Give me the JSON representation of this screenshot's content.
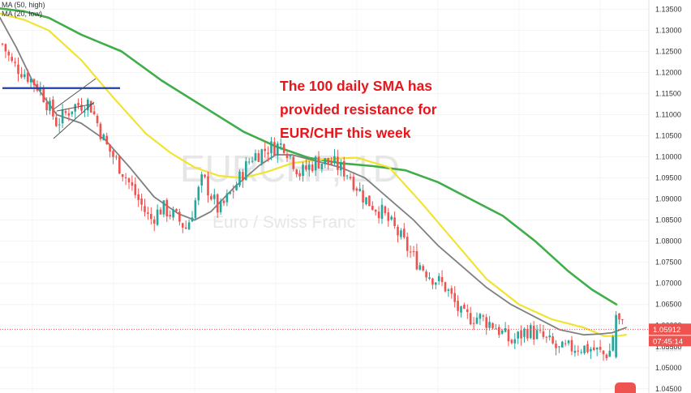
{
  "chart_data": {
    "type": "candlestick",
    "symbol_watermark": "EURCHF, 1D",
    "symbol_description": "Euro / Swiss Franc",
    "legend": [
      {
        "label": "MA (50, high)",
        "color": "#f2e333"
      },
      {
        "label": "MA (20, low)",
        "color": "#808080"
      }
    ],
    "annotation": [
      "The 100 daily SMA has",
      "provided resistance for",
      "EUR/CHF this week"
    ],
    "y_axis": {
      "ticks": [
        "1.13500",
        "1.13000",
        "1.12500",
        "1.12000",
        "1.11500",
        "1.11000",
        "1.10500",
        "1.10000",
        "1.09500",
        "1.09000",
        "1.08500",
        "1.08000",
        "1.07500",
        "1.07000",
        "1.06500",
        "1.06000",
        "1.05500",
        "1.05000",
        "1.04500"
      ],
      "ylim": [
        1.044,
        1.1372
      ]
    },
    "last_price": "1.05912",
    "countdown": "07:45:14",
    "partial_label": "1.05500",
    "support_line": 1.1163,
    "colors": {
      "up": "#26a69a",
      "down": "#ef5350",
      "ma100": "#3fae49",
      "ma50": "#f2e333",
      "ma20": "#808080",
      "support": "#1f3ea8",
      "tag": "#ef5350"
    },
    "ma100": [
      [
        0,
        1.1352
      ],
      [
        30,
        1.1345
      ],
      [
        60,
        1.133
      ],
      [
        100,
        1.129
      ],
      [
        150,
        1.125
      ],
      [
        200,
        1.118
      ],
      [
        250,
        1.112
      ],
      [
        300,
        1.106
      ],
      [
        340,
        1.1025
      ],
      [
        380,
        1.0998
      ],
      [
        420,
        1.0985
      ],
      [
        460,
        1.0978
      ],
      [
        500,
        1.0968
      ],
      [
        540,
        1.094
      ],
      [
        580,
        1.09
      ],
      [
        620,
        1.086
      ],
      [
        660,
        1.08
      ],
      [
        700,
        1.073
      ],
      [
        730,
        1.0685
      ],
      [
        760,
        1.065
      ]
    ],
    "ma50": [
      [
        0,
        1.134
      ],
      [
        30,
        1.1325
      ],
      [
        60,
        1.13
      ],
      [
        100,
        1.123
      ],
      [
        140,
        1.114
      ],
      [
        180,
        1.1055
      ],
      [
        210,
        1.101
      ],
      [
        240,
        1.0975
      ],
      [
        270,
        1.0955
      ],
      [
        300,
        1.095
      ],
      [
        330,
        1.0965
      ],
      [
        360,
        1.0985
      ],
      [
        400,
        1.0995
      ],
      [
        440,
        1.0998
      ],
      [
        480,
        1.0975
      ],
      [
        520,
        1.089
      ],
      [
        560,
        1.08
      ],
      [
        600,
        1.071
      ],
      [
        640,
        1.065
      ],
      [
        680,
        1.0615
      ],
      [
        720,
        1.0595
      ],
      [
        745,
        1.0575
      ],
      [
        760,
        1.0575
      ],
      [
        772,
        1.0578
      ]
    ],
    "ma20": [
      [
        0,
        1.133
      ],
      [
        20,
        1.126
      ],
      [
        40,
        1.118
      ],
      [
        70,
        1.11
      ],
      [
        100,
        1.108
      ],
      [
        130,
        1.104
      ],
      [
        160,
        1.0975
      ],
      [
        190,
        1.0905
      ],
      [
        220,
        1.0865
      ],
      [
        240,
        1.085
      ],
      [
        260,
        1.087
      ],
      [
        290,
        1.093
      ],
      [
        320,
        1.098
      ],
      [
        340,
        1.1005
      ],
      [
        360,
        1.1005
      ],
      [
        380,
        1.0995
      ],
      [
        400,
        1.0985
      ],
      [
        420,
        1.0975
      ],
      [
        450,
        1.095
      ],
      [
        480,
        1.09
      ],
      [
        510,
        1.085
      ],
      [
        540,
        1.079
      ],
      [
        570,
        1.074
      ],
      [
        600,
        1.069
      ],
      [
        630,
        1.065
      ],
      [
        660,
        1.062
      ],
      [
        690,
        1.059
      ],
      [
        720,
        1.0578
      ],
      [
        740,
        1.058
      ],
      [
        755,
        1.0583
      ],
      [
        772,
        1.0595
      ]
    ],
    "candles_anchor": [
      [
        0,
        1.128
      ],
      [
        15,
        1.122
      ],
      [
        30,
        1.12
      ],
      [
        50,
        1.116
      ],
      [
        70,
        1.108
      ],
      [
        90,
        1.112
      ],
      [
        110,
        1.113
      ],
      [
        130,
        1.103
      ],
      [
        150,
        1.097
      ],
      [
        170,
        1.09
      ],
      [
        185,
        1.085
      ],
      [
        200,
        1.088
      ],
      [
        215,
        1.086
      ],
      [
        230,
        1.083
      ],
      [
        250,
        1.095
      ],
      [
        270,
        1.087
      ],
      [
        290,
        1.093
      ],
      [
        310,
        1.1
      ],
      [
        330,
        1.102
      ],
      [
        350,
        1.103
      ],
      [
        370,
        1.096
      ],
      [
        390,
        1.099
      ],
      [
        410,
        1.0985
      ],
      [
        430,
        1.096
      ],
      [
        450,
        1.09
      ],
      [
        470,
        1.087
      ],
      [
        490,
        1.082
      ],
      [
        510,
        1.076
      ],
      [
        530,
        1.072
      ],
      [
        550,
        1.069
      ],
      [
        570,
        1.062
      ],
      [
        590,
        1.062
      ],
      [
        610,
        1.06
      ],
      [
        630,
        1.056
      ],
      [
        650,
        1.059
      ],
      [
        670,
        1.057
      ],
      [
        690,
        1.054
      ],
      [
        710,
        1.055
      ],
      [
        730,
        1.0545
      ],
      [
        745,
        1.053
      ],
      [
        752,
        1.054
      ],
      [
        758,
        1.06
      ],
      [
        762,
        1.061
      ],
      [
        766,
        1.0605
      ],
      [
        770,
        1.059
      ]
    ]
  }
}
